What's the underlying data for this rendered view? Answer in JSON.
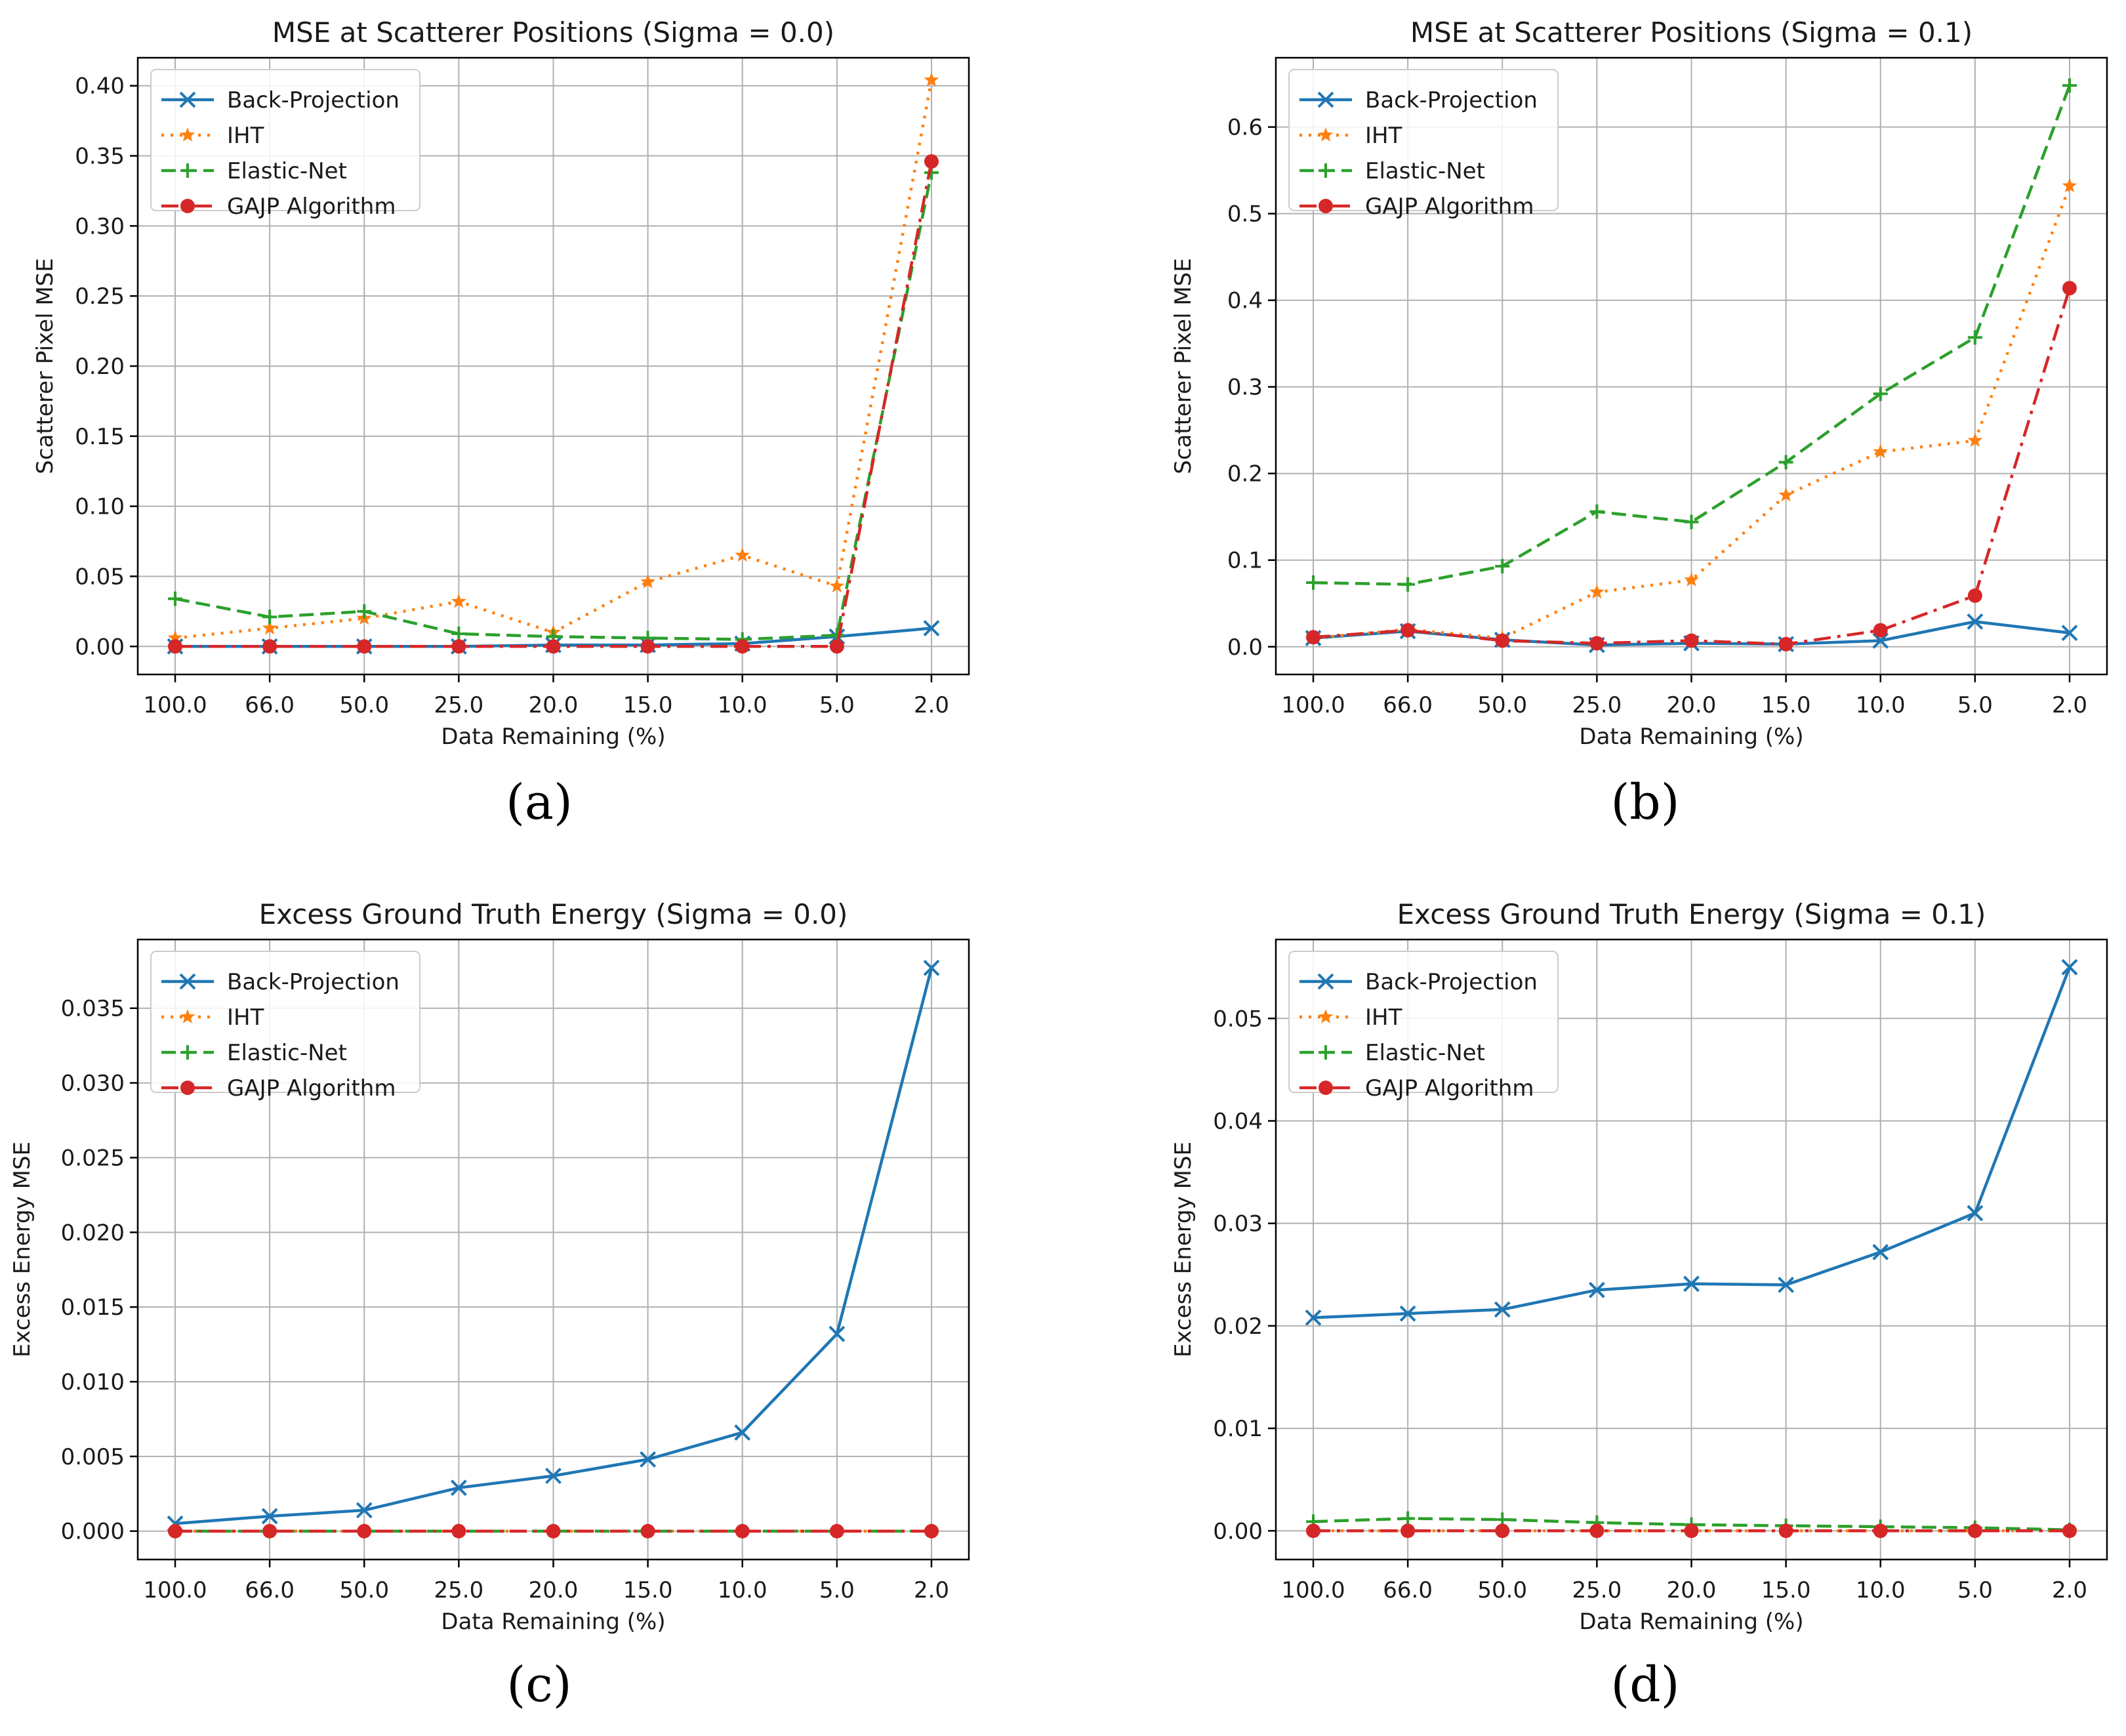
{
  "chart_data": [
    {
      "type": "line",
      "panel_label": "(a)",
      "title": "MSE at Scatterer Positions (Sigma = 0.0)",
      "xlabel": "Data Remaining (%)",
      "ylabel": "Scatterer Pixel MSE",
      "categories": [
        "100.0",
        "66.0",
        "50.0",
        "25.0",
        "20.0",
        "15.0",
        "10.0",
        "5.0",
        "2.0"
      ],
      "ylim": [
        -0.02,
        0.42
      ],
      "yticks": [
        "0.00",
        "0.05",
        "0.10",
        "0.15",
        "0.20",
        "0.25",
        "0.30",
        "0.35",
        "0.40"
      ],
      "grid": true,
      "legend": "top-left",
      "series": [
        {
          "name": "Back-Projection",
          "values": [
            0.0,
            0.0,
            0.0,
            0.0,
            0.001,
            0.001,
            0.002,
            0.007,
            0.013
          ]
        },
        {
          "name": "IHT",
          "values": [
            0.006,
            0.013,
            0.02,
            0.032,
            0.01,
            0.046,
            0.065,
            0.043,
            0.404
          ]
        },
        {
          "name": "Elastic-Net",
          "values": [
            0.034,
            0.021,
            0.025,
            0.009,
            0.007,
            0.006,
            0.005,
            0.008,
            0.338
          ]
        },
        {
          "name": "GAJP Algorithm",
          "values": [
            0.0,
            0.0,
            0.0,
            0.0,
            0.0,
            0.0,
            0.0,
            0.0,
            0.346
          ]
        }
      ]
    },
    {
      "type": "line",
      "panel_label": "(b)",
      "title": "MSE at Scatterer Positions (Sigma = 0.1)",
      "xlabel": "Data Remaining (%)",
      "ylabel": "Scatterer Pixel MSE",
      "categories": [
        "100.0",
        "66.0",
        "50.0",
        "25.0",
        "20.0",
        "15.0",
        "10.0",
        "5.0",
        "2.0"
      ],
      "ylim": [
        -0.032,
        0.68
      ],
      "yticks": [
        "0.0",
        "0.1",
        "0.2",
        "0.3",
        "0.4",
        "0.5",
        "0.6"
      ],
      "grid": true,
      "legend": "top-left",
      "series": [
        {
          "name": "Back-Projection",
          "values": [
            0.01,
            0.018,
            0.008,
            0.002,
            0.004,
            0.003,
            0.007,
            0.029,
            0.016
          ]
        },
        {
          "name": "IHT",
          "values": [
            0.01,
            0.02,
            0.01,
            0.063,
            0.077,
            0.175,
            0.225,
            0.238,
            0.532
          ]
        },
        {
          "name": "Elastic-Net",
          "values": [
            0.074,
            0.072,
            0.093,
            0.156,
            0.144,
            0.213,
            0.292,
            0.357,
            0.648
          ]
        },
        {
          "name": "GAJP Algorithm",
          "values": [
            0.011,
            0.019,
            0.007,
            0.004,
            0.007,
            0.003,
            0.019,
            0.059,
            0.414
          ]
        }
      ]
    },
    {
      "type": "line",
      "panel_label": "(c)",
      "title": "Excess Ground Truth Energy (Sigma = 0.0)",
      "xlabel": "Data Remaining (%)",
      "ylabel": "Excess Energy MSE",
      "categories": [
        "100.0",
        "66.0",
        "50.0",
        "25.0",
        "20.0",
        "15.0",
        "10.0",
        "5.0",
        "2.0"
      ],
      "ylim": [
        -0.0019,
        0.0396
      ],
      "yticks": [
        "0.000",
        "0.005",
        "0.010",
        "0.015",
        "0.020",
        "0.025",
        "0.030",
        "0.035"
      ],
      "grid": true,
      "legend": "top-left",
      "series": [
        {
          "name": "Back-Projection",
          "values": [
            0.0005,
            0.001,
            0.0014,
            0.0029,
            0.0037,
            0.0048,
            0.0066,
            0.0132,
            0.0377
          ]
        },
        {
          "name": "IHT",
          "values": [
            0.0,
            0.0,
            0.0,
            0.0,
            0.0,
            0.0,
            0.0,
            0.0,
            0.0
          ]
        },
        {
          "name": "Elastic-Net",
          "values": [
            0.0,
            0.0,
            0.0,
            0.0,
            0.0,
            0.0,
            0.0,
            0.0,
            0.0
          ]
        },
        {
          "name": "GAJP Algorithm",
          "values": [
            0.0,
            0.0,
            0.0,
            0.0,
            0.0,
            0.0,
            0.0,
            0.0,
            0.0
          ]
        }
      ]
    },
    {
      "type": "line",
      "panel_label": "(d)",
      "title": "Excess Ground Truth Energy (Sigma = 0.1)",
      "xlabel": "Data Remaining (%)",
      "ylabel": "Excess Energy MSE",
      "categories": [
        "100.0",
        "66.0",
        "50.0",
        "25.0",
        "20.0",
        "15.0",
        "10.0",
        "5.0",
        "2.0"
      ],
      "ylim": [
        -0.0028,
        0.0577
      ],
      "yticks": [
        "0.00",
        "0.01",
        "0.02",
        "0.03",
        "0.04",
        "0.05"
      ],
      "grid": true,
      "legend": "top-left",
      "series": [
        {
          "name": "Back-Projection",
          "values": [
            0.0208,
            0.0212,
            0.0216,
            0.0235,
            0.0241,
            0.024,
            0.0272,
            0.031,
            0.055
          ]
        },
        {
          "name": "IHT",
          "values": [
            0.0,
            0.0,
            0.0,
            0.0,
            0.0,
            0.0,
            0.0,
            0.0,
            0.0
          ]
        },
        {
          "name": "Elastic-Net",
          "values": [
            0.0009,
            0.0012,
            0.0011,
            0.0008,
            0.0006,
            0.0005,
            0.0004,
            0.0003,
            0.0001
          ]
        },
        {
          "name": "GAJP Algorithm",
          "values": [
            0.0,
            0.0,
            0.0,
            0.0,
            0.0,
            0.0,
            0.0,
            0.0,
            0.0
          ]
        }
      ]
    }
  ],
  "styles": {
    "Back-Projection": {
      "color": "#1f77b4",
      "marker": "x",
      "dash": ""
    },
    "IHT": {
      "color": "#ff7f0e",
      "marker": "star",
      "dash": "4 10"
    },
    "Elastic-Net": {
      "color": "#2ca02c",
      "marker": "plus",
      "dash": "22 10"
    },
    "GAJP Algorithm": {
      "color": "#d62728",
      "marker": "dot",
      "dash": "26 10 5 10"
    }
  }
}
